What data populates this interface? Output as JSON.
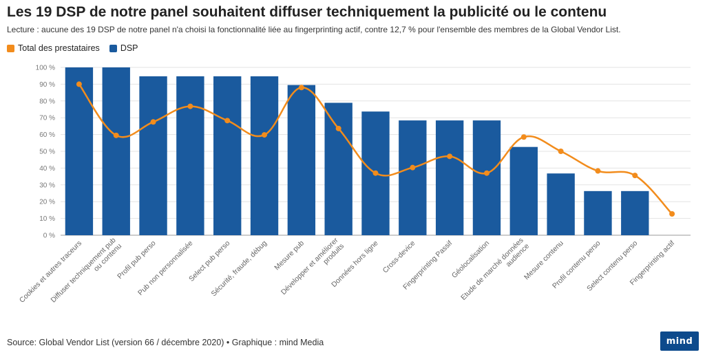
{
  "title": "Les 19 DSP de notre panel souhaitent diffuser techniquement la publicité ou le contenu",
  "subtitle": "Lecture : aucune des 19 DSP de notre panel n'a choisi la fonctionnalité liée au fingerprinting actif, contre 12,7 % pour l'ensemble des membres de la Global Vendor List.",
  "legend": [
    {
      "label": "Total des prestataires",
      "color": "#f28c1c"
    },
    {
      "label": "DSP",
      "color": "#1a5a9e"
    }
  ],
  "source": "Source: Global Vendor List (version 66 / décembre 2020) • Graphique : mind Media",
  "logo_text": "mind",
  "chart_data": {
    "type": "bar",
    "categories": [
      [
        "Cookies et autres traceurs"
      ],
      [
        "Diffuser techniquement pub",
        "ou contenu"
      ],
      [
        "Profil pub perso"
      ],
      [
        "Pub non personnalisée"
      ],
      [
        "Select pub perso"
      ],
      [
        "Sécurité, fraude, débug"
      ],
      [
        "Mesure pub"
      ],
      [
        "Développer et améliorer",
        "produits"
      ],
      [
        "Données hors ligne"
      ],
      [
        "Cross-device"
      ],
      [
        "Fingerprinting Passif"
      ],
      [
        "Géolocalisation"
      ],
      [
        "Etude de marché données",
        "audience"
      ],
      [
        "Mesure contenu"
      ],
      [
        "Profil contenu perso"
      ],
      [
        "Select contenu perso"
      ],
      [
        "Fingerprinting actif"
      ]
    ],
    "series": [
      {
        "name": "DSP",
        "type": "bar",
        "color": "#1a5a9e",
        "values": [
          100,
          100,
          94.7,
          94.7,
          94.7,
          94.7,
          89.5,
          78.9,
          73.7,
          68.4,
          68.4,
          68.4,
          52.6,
          36.8,
          26.3,
          26.3,
          0
        ]
      },
      {
        "name": "Total des prestataires",
        "type": "line",
        "color": "#f28c1c",
        "values": [
          90,
          59.5,
          67.5,
          76.8,
          68.3,
          59.8,
          88,
          63.6,
          37,
          40.3,
          47,
          37,
          58.5,
          50,
          38.3,
          35.6,
          12.7
        ]
      }
    ],
    "y_ticks": [
      "0 %",
      "10 %",
      "20 %",
      "30 %",
      "40 %",
      "50 %",
      "60 %",
      "70 %",
      "80 %",
      "90 %",
      "100 %"
    ],
    "ylim": [
      0,
      100
    ],
    "grid": true,
    "legend_position": "top-left"
  }
}
